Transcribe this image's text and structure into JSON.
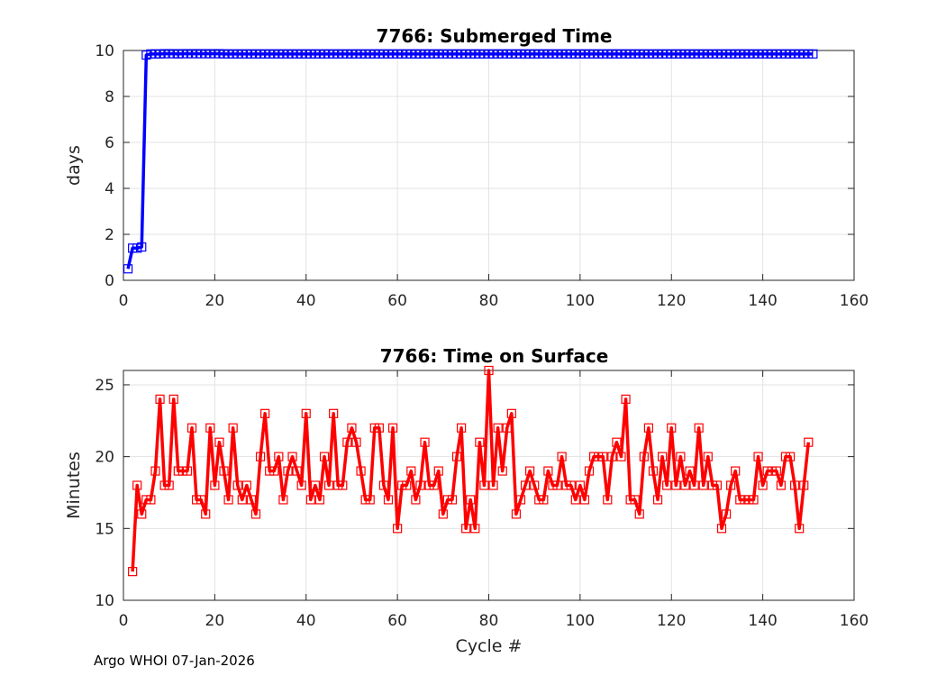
{
  "footer": "Argo WHOI 07-Jan-2026",
  "chart_data": [
    {
      "type": "line",
      "title": "7766: Submerged Time",
      "xlabel": "",
      "ylabel": "days",
      "xlim": [
        0,
        160
      ],
      "ylim": [
        0,
        10
      ],
      "xticks": [
        0,
        20,
        40,
        60,
        80,
        100,
        120,
        140,
        160
      ],
      "yticks": [
        0,
        2,
        4,
        6,
        8,
        10
      ],
      "grid": true,
      "marker": "square",
      "color": "#0000ff",
      "x_start": 1,
      "series": [
        {
          "values": [
            0.5,
            1.4,
            1.4,
            1.45,
            9.8,
            9.85,
            9.85,
            9.85,
            9.86,
            9.86,
            9.86,
            9.85,
            9.86,
            9.86,
            9.86,
            9.86,
            9.86,
            9.86,
            9.86,
            9.86,
            9.86,
            9.85,
            9.85,
            9.85,
            9.85,
            9.85,
            9.85,
            9.85,
            9.85,
            9.85,
            9.85,
            9.85,
            9.85,
            9.85,
            9.85,
            9.85,
            9.85,
            9.85,
            9.85,
            9.85,
            9.85,
            9.85,
            9.85,
            9.85,
            9.85,
            9.85,
            9.85,
            9.85,
            9.85,
            9.85,
            9.85,
            9.85,
            9.85,
            9.85,
            9.85,
            9.85,
            9.85,
            9.85,
            9.85,
            9.85,
            9.85,
            9.85,
            9.85,
            9.85,
            9.85,
            9.85,
            9.85,
            9.85,
            9.85,
            9.85,
            9.85,
            9.85,
            9.85,
            9.85,
            9.85,
            9.85,
            9.85,
            9.85,
            9.85,
            9.85,
            9.85,
            9.85,
            9.85,
            9.85,
            9.85,
            9.85,
            9.85,
            9.85,
            9.85,
            9.85,
            9.85,
            9.85,
            9.85,
            9.85,
            9.85,
            9.85,
            9.85,
            9.85,
            9.85,
            9.85,
            9.85,
            9.85,
            9.85,
            9.85,
            9.85,
            9.85,
            9.85,
            9.85,
            9.85,
            9.85,
            9.85,
            9.85,
            9.85,
            9.85,
            9.85,
            9.85,
            9.85,
            9.85,
            9.85,
            9.85,
            9.85,
            9.85,
            9.85,
            9.85,
            9.85,
            9.85,
            9.85,
            9.85,
            9.85,
            9.85,
            9.85,
            9.85,
            9.85,
            9.85,
            9.85,
            9.85,
            9.85,
            9.85,
            9.85,
            9.85,
            9.85,
            9.85,
            9.85,
            9.85,
            9.85,
            9.85,
            9.85,
            9.85,
            9.85,
            9.85,
            9.85
          ]
        }
      ]
    },
    {
      "type": "line",
      "title": "7766: Time on Surface",
      "xlabel": "Cycle #",
      "ylabel": "Minutes",
      "xlim": [
        0,
        160
      ],
      "ylim": [
        10,
        26
      ],
      "xticks": [
        0,
        20,
        40,
        60,
        80,
        100,
        120,
        140,
        160
      ],
      "yticks": [
        10,
        15,
        20,
        25
      ],
      "grid": true,
      "marker": "square",
      "color": "#ff0000",
      "x_start": 2,
      "series": [
        {
          "values": [
            12,
            18,
            16,
            17,
            17,
            19,
            24,
            18,
            18,
            24,
            19,
            19,
            19,
            22,
            17,
            17,
            16,
            22,
            18,
            21,
            19,
            17,
            22,
            18,
            17,
            18,
            17,
            16,
            20,
            23,
            19,
            19,
            20,
            17,
            19,
            20,
            19,
            18,
            23,
            17,
            18,
            17,
            20,
            18,
            23,
            18,
            18,
            21,
            22,
            21,
            19,
            17,
            17,
            22,
            22,
            18,
            17,
            22,
            15,
            18,
            18,
            19,
            17,
            18,
            21,
            18,
            18,
            19,
            16,
            17,
            17,
            20,
            22,
            15,
            17,
            15,
            21,
            18,
            26,
            18,
            22,
            19,
            22,
            23,
            16,
            17,
            18,
            19,
            18,
            17,
            17,
            19,
            18,
            18,
            20,
            18,
            18,
            17,
            18,
            17,
            19,
            20,
            20,
            20,
            17,
            20,
            21,
            20,
            24,
            17,
            17,
            16,
            20,
            22,
            19,
            17,
            20,
            18,
            22,
            18,
            20,
            18,
            19,
            18,
            22,
            18,
            20,
            18,
            18,
            15,
            16,
            18,
            19,
            17,
            17,
            17,
            17,
            20,
            18,
            19,
            19,
            19,
            18,
            20,
            20,
            18,
            15,
            18,
            21
          ]
        }
      ]
    }
  ]
}
